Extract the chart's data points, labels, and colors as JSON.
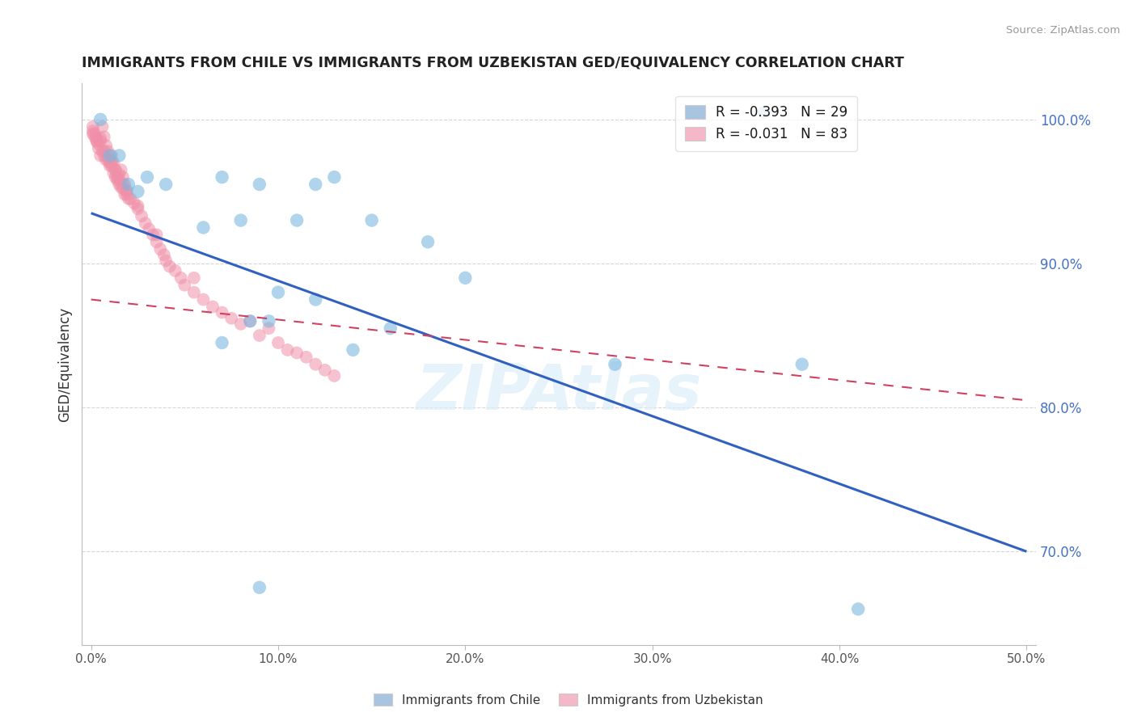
{
  "title": "IMMIGRANTS FROM CHILE VS IMMIGRANTS FROM UZBEKISTAN GED/EQUIVALENCY CORRELATION CHART",
  "source": "Source: ZipAtlas.com",
  "ylabel": "GED/Equivalency",
  "xlim": [
    -0.005,
    0.505
  ],
  "ylim": [
    0.635,
    1.025
  ],
  "xticks": [
    0.0,
    0.1,
    0.2,
    0.3,
    0.4,
    0.5
  ],
  "yticks": [
    0.7,
    0.8,
    0.9,
    1.0
  ],
  "ytick_labels": [
    "70.0%",
    "80.0%",
    "90.0%",
    "100.0%"
  ],
  "xtick_labels": [
    "0.0%",
    "10.0%",
    "20.0%",
    "30.0%",
    "40.0%",
    "50.0%"
  ],
  "legend_label1": "R = -0.393   N = 29",
  "legend_label2": "R = -0.031   N = 83",
  "legend_color1": "#a8c4e0",
  "legend_color2": "#f4b8c8",
  "chile_color": "#7ab8e0",
  "uzbekistan_color": "#f090a8",
  "chile_trend_color": "#3060c0",
  "uzbekistan_trend_color": "#d04060",
  "watermark": "ZIPAtlas",
  "chile_scatter_x": [
    0.005,
    0.015,
    0.01,
    0.02,
    0.025,
    0.03,
    0.04,
    0.07,
    0.09,
    0.12,
    0.13,
    0.15,
    0.11,
    0.08,
    0.06,
    0.18,
    0.2,
    0.1,
    0.12,
    0.07,
    0.14,
    0.085,
    0.095,
    0.16,
    0.28,
    0.38,
    0.09,
    0.41,
    0.36
  ],
  "chile_scatter_y": [
    1.0,
    0.975,
    0.975,
    0.955,
    0.95,
    0.96,
    0.955,
    0.96,
    0.955,
    0.955,
    0.96,
    0.93,
    0.93,
    0.93,
    0.925,
    0.915,
    0.89,
    0.88,
    0.875,
    0.845,
    0.84,
    0.86,
    0.86,
    0.855,
    0.83,
    0.83,
    0.675,
    0.66,
    1.005
  ],
  "uzbekistan_scatter_x": [
    0.001,
    0.002,
    0.003,
    0.004,
    0.005,
    0.006,
    0.007,
    0.008,
    0.009,
    0.01,
    0.011,
    0.012,
    0.013,
    0.014,
    0.015,
    0.016,
    0.017,
    0.018,
    0.019,
    0.02,
    0.001,
    0.003,
    0.005,
    0.007,
    0.009,
    0.011,
    0.013,
    0.015,
    0.017,
    0.019,
    0.002,
    0.004,
    0.006,
    0.008,
    0.01,
    0.012,
    0.014,
    0.016,
    0.018,
    0.001,
    0.003,
    0.005,
    0.007,
    0.009,
    0.011,
    0.013,
    0.015,
    0.017,
    0.019,
    0.021,
    0.023,
    0.025,
    0.027,
    0.029,
    0.031,
    0.033,
    0.035,
    0.037,
    0.039,
    0.04,
    0.042,
    0.045,
    0.048,
    0.05,
    0.055,
    0.06,
    0.065,
    0.07,
    0.075,
    0.08,
    0.09,
    0.1,
    0.105,
    0.11,
    0.115,
    0.12,
    0.125,
    0.13,
    0.025,
    0.035,
    0.055,
    0.085,
    0.095
  ],
  "uzbekistan_scatter_y": [
    0.995,
    0.99,
    0.985,
    0.98,
    0.975,
    0.995,
    0.988,
    0.982,
    0.978,
    0.97,
    0.975,
    0.97,
    0.965,
    0.96,
    0.955,
    0.965,
    0.96,
    0.955,
    0.95,
    0.945,
    0.99,
    0.985,
    0.985,
    0.975,
    0.972,
    0.968,
    0.96,
    0.958,
    0.952,
    0.948,
    0.988,
    0.983,
    0.978,
    0.972,
    0.968,
    0.963,
    0.958,
    0.953,
    0.948,
    0.992,
    0.987,
    0.987,
    0.978,
    0.974,
    0.97,
    0.965,
    0.962,
    0.955,
    0.951,
    0.945,
    0.942,
    0.938,
    0.933,
    0.928,
    0.924,
    0.92,
    0.915,
    0.91,
    0.906,
    0.902,
    0.898,
    0.895,
    0.89,
    0.885,
    0.88,
    0.875,
    0.87,
    0.866,
    0.862,
    0.858,
    0.85,
    0.845,
    0.84,
    0.838,
    0.835,
    0.83,
    0.826,
    0.822,
    0.94,
    0.92,
    0.89,
    0.86,
    0.855
  ],
  "chile_trend_x": [
    0.0,
    0.5
  ],
  "chile_trend_y": [
    0.935,
    0.7
  ],
  "uzbekistan_trend_x": [
    0.0,
    0.5
  ],
  "uzbekistan_trend_y": [
    0.875,
    0.805
  ]
}
